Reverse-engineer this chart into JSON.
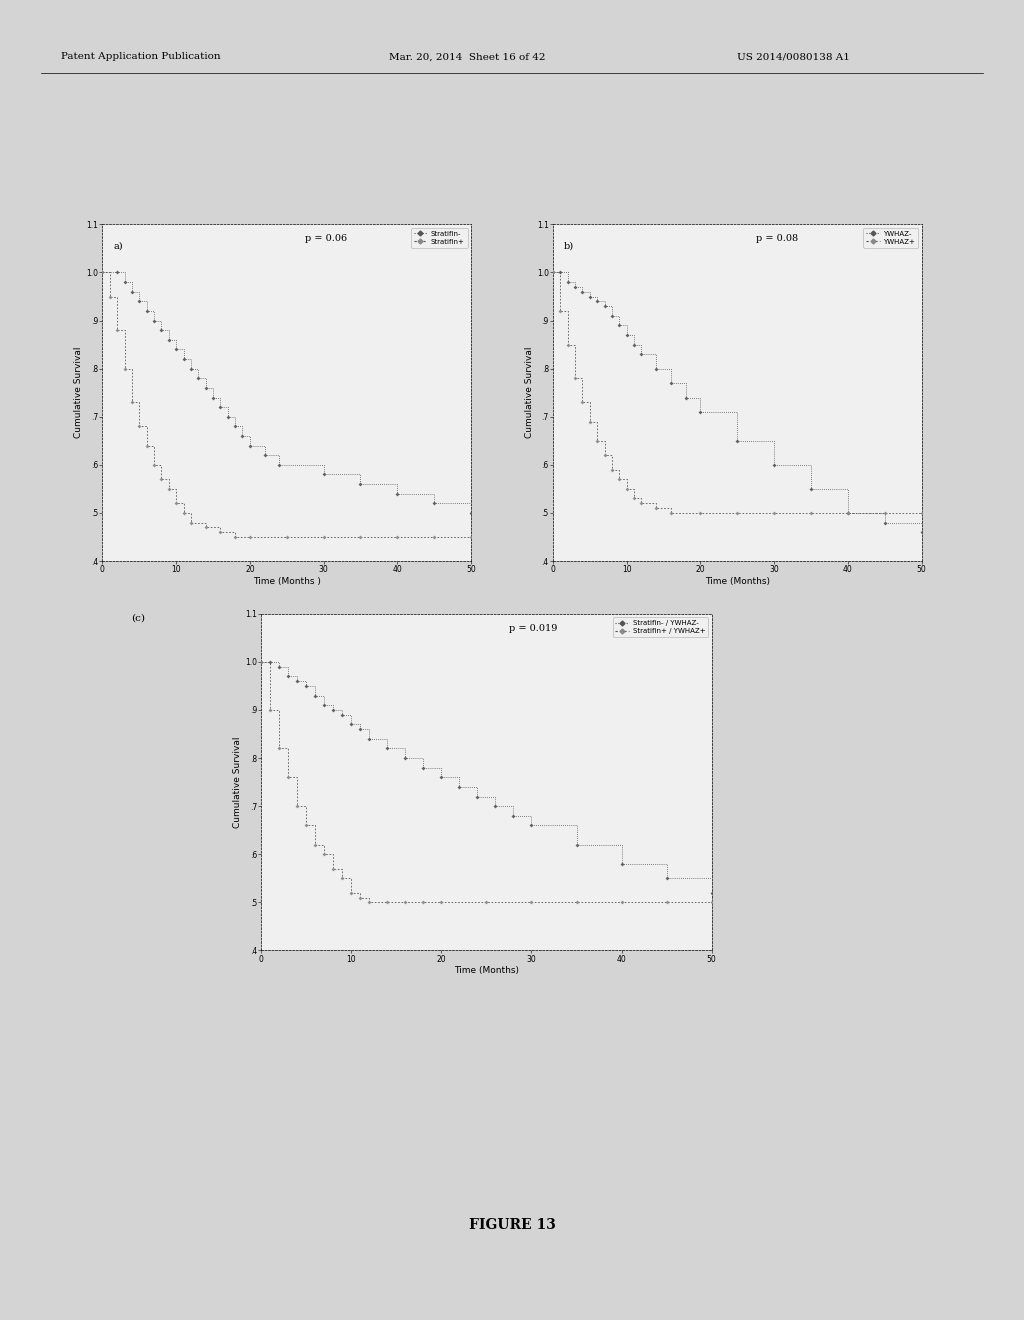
{
  "figure_title": "FIGURE 13",
  "header_left": "Patent Application Publication",
  "header_mid": "Mar. 20, 2014  Sheet 16 of 42",
  "header_right": "US 2014/0080138 A1",
  "bg_color": "#d8d8d8",
  "page_color": "#e8e8e8",
  "panel_a": {
    "label": "a)",
    "p_value": "p = 0.06",
    "xlabel": "Time (Months )",
    "ylabel": "Cumulative Survival",
    "xlim": [
      0,
      50
    ],
    "ylim": [
      0.4,
      1.1
    ],
    "ytick_vals": [
      0.4,
      0.5,
      0.6,
      0.7,
      0.8,
      0.9,
      1.0,
      1.1
    ],
    "ytick_labels": [
      ".4",
      ".5",
      ".6",
      ".7",
      ".8",
      ".9",
      "1.0",
      "1.1"
    ],
    "xtick_vals": [
      0,
      10,
      20,
      30,
      40,
      50
    ],
    "line1_label": "Stratifin-",
    "line2_label": "Stratifin+",
    "line1_x": [
      0,
      2,
      3,
      4,
      5,
      6,
      7,
      8,
      9,
      10,
      11,
      12,
      13,
      14,
      15,
      16,
      17,
      18,
      19,
      20,
      22,
      24,
      30,
      35,
      40,
      45,
      50
    ],
    "line1_y": [
      1.0,
      1.0,
      0.98,
      0.96,
      0.94,
      0.92,
      0.9,
      0.88,
      0.86,
      0.84,
      0.82,
      0.8,
      0.78,
      0.76,
      0.74,
      0.72,
      0.7,
      0.68,
      0.66,
      0.64,
      0.62,
      0.6,
      0.58,
      0.56,
      0.54,
      0.52,
      0.5
    ],
    "line2_x": [
      0,
      1,
      2,
      3,
      4,
      5,
      6,
      7,
      8,
      9,
      10,
      11,
      12,
      14,
      16,
      18,
      20,
      25,
      30,
      35,
      40,
      45,
      50
    ],
    "line2_y": [
      1.0,
      0.95,
      0.88,
      0.8,
      0.73,
      0.68,
      0.64,
      0.6,
      0.57,
      0.55,
      0.52,
      0.5,
      0.48,
      0.47,
      0.46,
      0.45,
      0.45,
      0.45,
      0.45,
      0.45,
      0.45,
      0.45,
      0.45
    ]
  },
  "panel_b": {
    "label": "b)",
    "p_value": "p = 0.08",
    "xlabel": "Time (Months)",
    "ylabel": "Cumulative Survival",
    "xlim": [
      0,
      50
    ],
    "ylim": [
      0.4,
      1.1
    ],
    "ytick_vals": [
      0.4,
      0.5,
      0.6,
      0.7,
      0.8,
      0.9,
      1.0,
      1.1
    ],
    "ytick_labels": [
      ".4",
      ".5",
      ".6",
      ".7",
      ".8",
      ".9",
      "1.0",
      "1.1"
    ],
    "xtick_vals": [
      0,
      10,
      20,
      30,
      40,
      50
    ],
    "line1_label": "YWHAZ-",
    "line2_label": "YWHAZ+",
    "line1_x": [
      0,
      1,
      2,
      3,
      4,
      5,
      6,
      7,
      8,
      9,
      10,
      11,
      12,
      14,
      16,
      18,
      20,
      25,
      30,
      35,
      40,
      45,
      50
    ],
    "line1_y": [
      1.0,
      1.0,
      0.98,
      0.97,
      0.96,
      0.95,
      0.94,
      0.93,
      0.91,
      0.89,
      0.87,
      0.85,
      0.83,
      0.8,
      0.77,
      0.74,
      0.71,
      0.65,
      0.6,
      0.55,
      0.5,
      0.48,
      0.46
    ],
    "line2_x": [
      0,
      1,
      2,
      3,
      4,
      5,
      6,
      7,
      8,
      9,
      10,
      11,
      12,
      14,
      16,
      20,
      25,
      30,
      35,
      40,
      45,
      50
    ],
    "line2_y": [
      1.0,
      0.92,
      0.85,
      0.78,
      0.73,
      0.69,
      0.65,
      0.62,
      0.59,
      0.57,
      0.55,
      0.53,
      0.52,
      0.51,
      0.5,
      0.5,
      0.5,
      0.5,
      0.5,
      0.5,
      0.5,
      0.5
    ]
  },
  "panel_c": {
    "label": "(c)",
    "p_value": "p = 0.019",
    "xlabel": "Time (Months)",
    "ylabel": "Cumulative Survival",
    "xlim": [
      0,
      50
    ],
    "ylim": [
      0.4,
      1.1
    ],
    "ytick_vals": [
      0.4,
      0.5,
      0.6,
      0.7,
      0.8,
      0.9,
      1.0,
      1.1
    ],
    "ytick_labels": [
      ".4",
      ".5",
      ".6",
      ".7",
      ".8",
      ".9",
      "1.0",
      "1.1"
    ],
    "xtick_vals": [
      0,
      10,
      20,
      30,
      40,
      50
    ],
    "line1_label": "Stratifin- / YWHAZ-",
    "line2_label": "Stratifin+ / YWHAZ+",
    "line1_x": [
      0,
      1,
      2,
      3,
      4,
      5,
      6,
      7,
      8,
      9,
      10,
      11,
      12,
      14,
      16,
      18,
      20,
      22,
      24,
      26,
      28,
      30,
      35,
      40,
      45,
      50
    ],
    "line1_y": [
      1.0,
      1.0,
      0.99,
      0.97,
      0.96,
      0.95,
      0.93,
      0.91,
      0.9,
      0.89,
      0.87,
      0.86,
      0.84,
      0.82,
      0.8,
      0.78,
      0.76,
      0.74,
      0.72,
      0.7,
      0.68,
      0.66,
      0.62,
      0.58,
      0.55,
      0.52
    ],
    "line2_x": [
      0,
      1,
      2,
      3,
      4,
      5,
      6,
      7,
      8,
      9,
      10,
      11,
      12,
      14,
      16,
      18,
      20,
      25,
      30,
      35,
      40,
      45,
      50
    ],
    "line2_y": [
      1.0,
      0.9,
      0.82,
      0.76,
      0.7,
      0.66,
      0.62,
      0.6,
      0.57,
      0.55,
      0.52,
      0.51,
      0.5,
      0.5,
      0.5,
      0.5,
      0.5,
      0.5,
      0.5,
      0.5,
      0.5,
      0.5,
      0.5
    ]
  }
}
